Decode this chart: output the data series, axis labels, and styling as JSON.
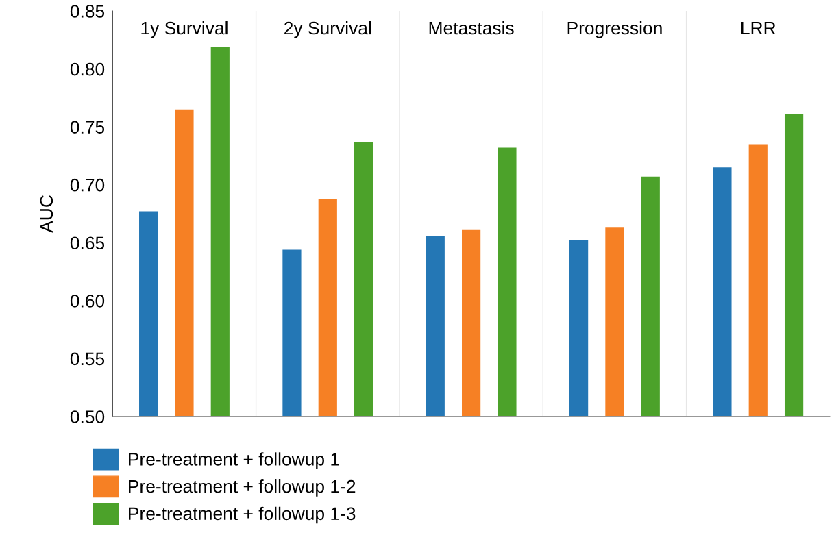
{
  "chart_data": {
    "type": "bar",
    "ylabel": "AUC",
    "categories": [
      "1y Survival",
      "2y Survival",
      "Metastasis",
      "Progression",
      "LRR"
    ],
    "series": [
      {
        "name": "Pre-treatment + followup 1",
        "color": "#2477b5",
        "values": [
          0.677,
          0.644,
          0.656,
          0.652,
          0.715
        ]
      },
      {
        "name": "Pre-treatment + followup 1-2",
        "color": "#f68024",
        "values": [
          0.765,
          0.688,
          0.661,
          0.663,
          0.735
        ]
      },
      {
        "name": "Pre-treatment + followup 1-3",
        "color": "#4ca22a",
        "values": [
          0.819,
          0.737,
          0.732,
          0.707,
          0.761
        ]
      }
    ],
    "ylim": [
      0.5,
      0.85
    ],
    "yticks": [
      {
        "value": 0.5,
        "label": "0.50"
      },
      {
        "value": 0.55,
        "label": "0.55"
      },
      {
        "value": 0.6,
        "label": "0.60"
      },
      {
        "value": 0.65,
        "label": "0.65"
      },
      {
        "value": 0.7,
        "label": "0.70"
      },
      {
        "value": 0.75,
        "label": "0.75"
      },
      {
        "value": 0.8,
        "label": "0.80"
      },
      {
        "value": 0.85,
        "label": "0.85"
      }
    ],
    "grid": "x",
    "legend": "bottom"
  }
}
